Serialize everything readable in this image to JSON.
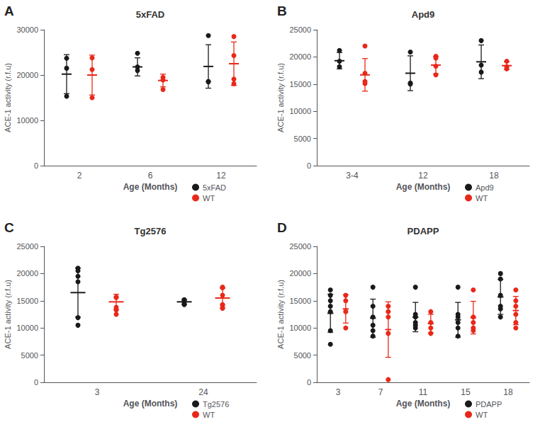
{
  "chart_data": [
    {
      "type": "scatter",
      "title": "5xFAD",
      "annotations": [
        "A"
      ],
      "xlabel": "Age (Months)",
      "ylabel": "ACE-1 activity (r.f.u)",
      "categories": [
        "2",
        "6",
        "12"
      ],
      "ylim": [
        0,
        30000
      ],
      "yticks": [
        0,
        10000,
        20000,
        30000
      ],
      "grid": false,
      "legend": "lower right",
      "series": [
        {
          "name": "5xFAD",
          "color": "#1a1a1a",
          "values": [
            [
              15300,
              21500,
              23700
            ],
            [
              21000,
              21800,
              24800
            ],
            [
              18500,
              18600,
              28700
            ]
          ],
          "mean": [
            20200,
            21800,
            21900
          ],
          "sd": [
            4300,
            2000,
            4800
          ]
        },
        {
          "name": "WT",
          "color": "#e8281a",
          "values": [
            [
              15000,
              21200,
              23800
            ],
            [
              16800,
              18900,
              19500
            ],
            [
              18100,
              19100,
              24300,
              28500
            ]
          ],
          "mean": [
            20000,
            18800,
            22500
          ],
          "sd": [
            4400,
            1400,
            4800
          ]
        }
      ]
    },
    {
      "type": "scatter",
      "title": "Apd9",
      "annotations": [
        "B"
      ],
      "xlabel": "Age (Months)",
      "ylabel": "ACE-1 activity (r.f.u)",
      "categories": [
        "3-4",
        "12",
        "18"
      ],
      "ylim": [
        0,
        25000
      ],
      "yticks": [
        0,
        5000,
        10000,
        15000,
        20000,
        25000
      ],
      "grid": false,
      "legend": "lower right",
      "series": [
        {
          "name": "Apd9",
          "color": "#1a1a1a",
          "values": [
            [
              18200,
              19200,
              21200
            ],
            [
              15000,
              15200,
              20900
            ],
            [
              17200,
              18500,
              23000
            ]
          ],
          "mean": [
            19300,
            17000,
            19100
          ],
          "sd": [
            1500,
            3200,
            3100
          ]
        },
        {
          "name": "WT",
          "color": "#e8281a",
          "values": [
            [
              15100,
              15500,
              17000,
              22000
            ],
            [
              16700,
              18300,
              19800,
              20100
            ],
            [
              17800,
              18200,
              19200
            ]
          ],
          "mean": [
            16700,
            18500,
            18400
          ],
          "sd": [
            3000,
            1600,
            700
          ]
        }
      ]
    },
    {
      "type": "scatter",
      "title": "Tg2576",
      "annotations": [
        "C"
      ],
      "xlabel": "Age (Months)",
      "ylabel": "ACE-1 activity (r.f.u)",
      "categories": [
        "3",
        "24"
      ],
      "ylim": [
        0,
        25000
      ],
      "yticks": [
        0,
        5000,
        10000,
        15000,
        20000,
        25000
      ],
      "grid": false,
      "legend": "lower right",
      "series": [
        {
          "name": "Tg2576",
          "color": "#1a1a1a",
          "values": [
            [
              10500,
              11900,
              18500,
              19500,
              20500,
              21000
            ],
            [
              14300,
              14800,
              15000,
              15200
            ]
          ],
          "mean": [
            16500,
            14800
          ],
          "sd": [
            4500,
            400
          ]
        },
        {
          "name": "WT",
          "color": "#e8281a",
          "values": [
            [
              12500,
              13300,
              13800,
              15600,
              15700
            ],
            [
              13600,
              14200,
              14300,
              16000,
              17400,
              17500
            ]
          ],
          "mean": [
            14800,
            15500
          ],
          "sd": [
            1400,
            1800
          ]
        }
      ]
    },
    {
      "type": "scatter",
      "title": "PDAPP",
      "annotations": [
        "D"
      ],
      "xlabel": "Age (Months)",
      "ylabel": "ACE-1 activity (r.f.u)",
      "categories": [
        "3",
        "7",
        "11",
        "15",
        "18"
      ],
      "ylim": [
        0,
        25000
      ],
      "yticks": [
        0,
        5000,
        10000,
        15000,
        20000,
        25000
      ],
      "grid": false,
      "legend": "lower right",
      "series": [
        {
          "name": "PDAPP",
          "color": "#1a1a1a",
          "values": [
            [
              7000,
              9500,
              13000,
              14000,
              15000,
              16000,
              17000
            ],
            [
              8500,
              9500,
              10500,
              12000,
              14000,
              17500
            ],
            [
              10000,
              10500,
              11000,
              12000,
              12500,
              17500
            ],
            [
              8500,
              10000,
              11000,
              12000,
              12500,
              17500
            ],
            [
              12000,
              13500,
              14000,
              16000,
              19000,
              20000
            ]
          ],
          "mean": [
            12700,
            11800,
            12000,
            11500,
            15700
          ],
          "sd": [
            3500,
            3500,
            2700,
            3200,
            3200
          ]
        },
        {
          "name": "WT",
          "color": "#e8281a",
          "values": [
            [
              10000,
              13000,
              15000,
              16000
            ],
            [
              500,
              9000,
              12000,
              13000,
              14000
            ],
            [
              9000,
              10000,
              11000,
              13000
            ],
            [
              9500,
              10000,
              11000,
              12000,
              17000
            ],
            [
              10000,
              11000,
              12500,
              14000,
              15000,
              17000
            ]
          ],
          "mean": [
            13500,
            9700,
            10800,
            11900,
            13200
          ],
          "sd": [
            2600,
            5100,
            1700,
            3000,
            2600
          ]
        }
      ]
    }
  ]
}
